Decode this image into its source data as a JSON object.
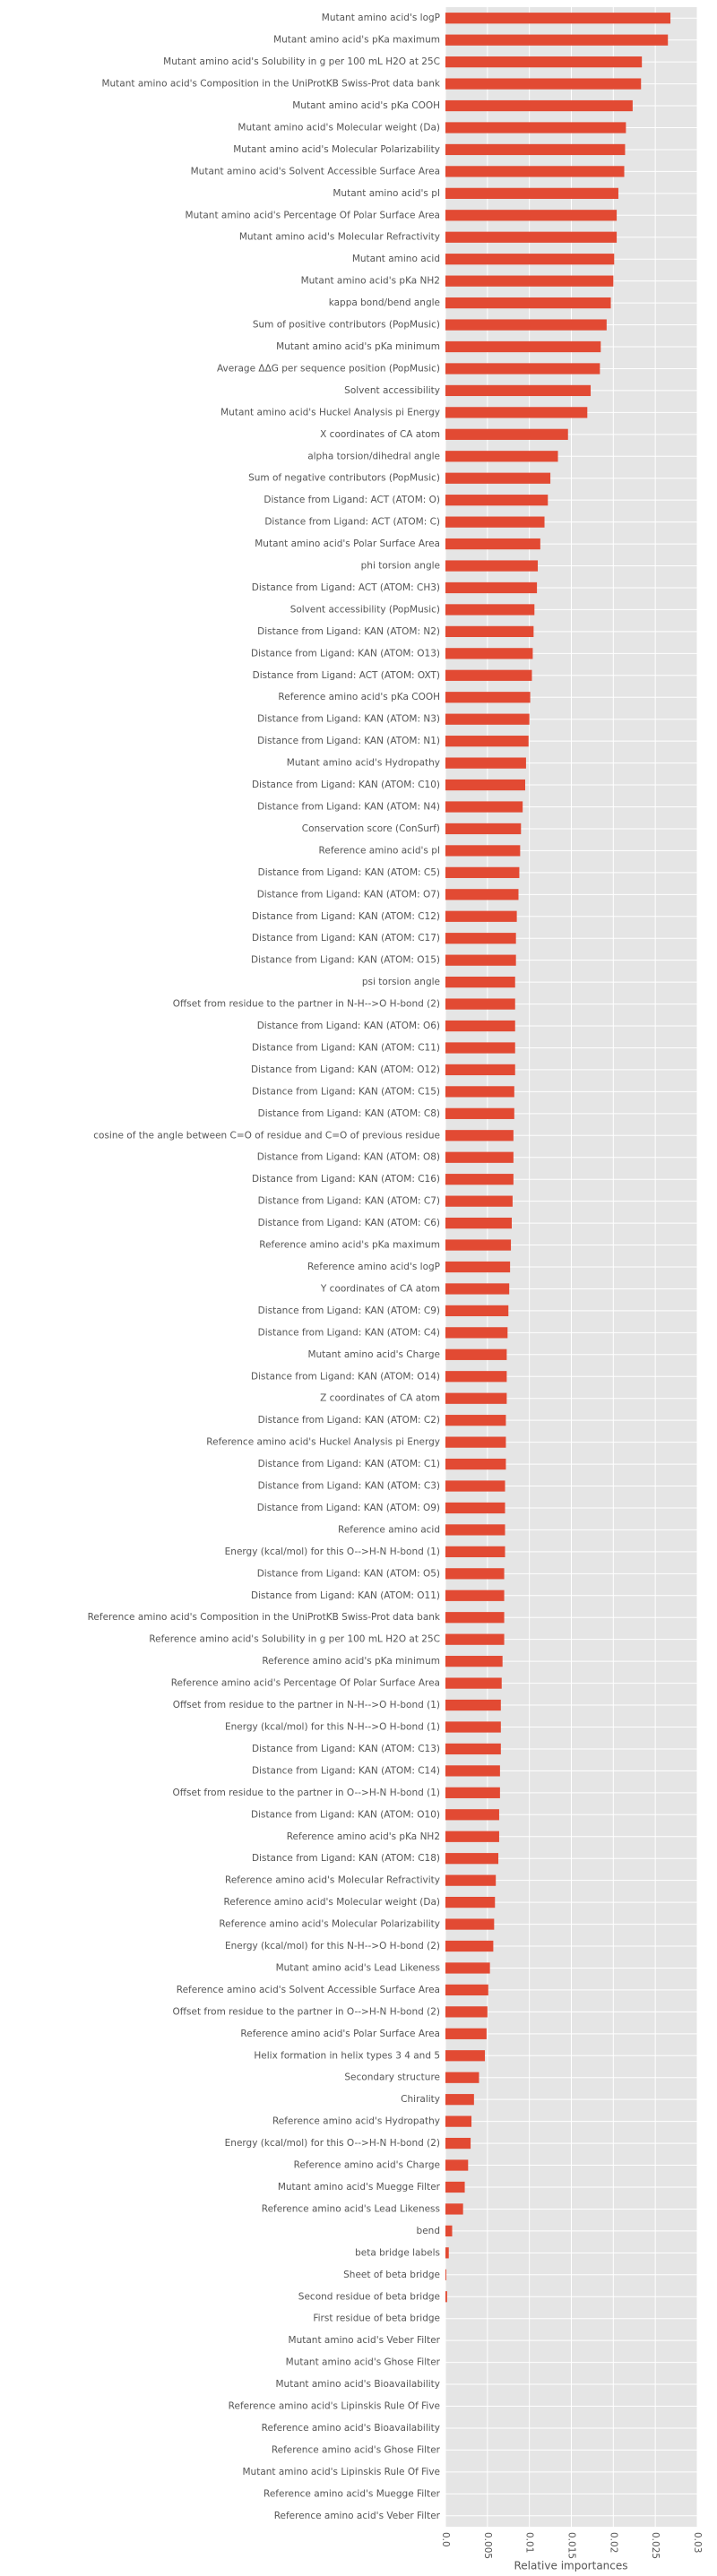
{
  "chart_data": {
    "type": "barh",
    "xlabel": "Relative importances",
    "color": "#e24a33",
    "grid": true,
    "xlim": [
      0,
      0.03
    ],
    "xticks": [
      {
        "value": 0,
        "label": "0.0"
      },
      0.005,
      0.01,
      0.015,
      0.02,
      0.025,
      0.03
    ],
    "categories": [
      "Mutant amino acid's logP",
      "Mutant amino acid's pKa maximum",
      "Mutant amino acid's Solubility in g per 100 mL H2O at 25C",
      "Mutant amino acid's Composition in the UniProtKB Swiss-Prot data bank",
      "Mutant amino acid's pKa COOH",
      "Mutant amino acid's Molecular weight (Da)",
      "Mutant amino acid's Molecular Polarizability",
      "Mutant amino acid's Solvent Accessible Surface Area",
      "Mutant amino acid's pI",
      "Mutant amino acid's Percentage Of Polar Surface Area",
      "Mutant amino acid's Molecular Refractivity",
      "Mutant amino acid",
      "Mutant amino acid's pKa NH2",
      "kappa bond/bend angle",
      "Sum of positive contributors (PopMusic)",
      "Mutant amino acid's pKa minimum",
      "Average ΔΔG per sequence position (PopMusic)",
      "Solvent accessibility",
      "Mutant amino acid's Huckel Analysis pi Energy",
      "X coordinates of CA atom",
      "alpha torsion/dihedral angle",
      "Sum of negative contributors (PopMusic)",
      "Distance from Ligand: ACT (ATOM: O)",
      "Distance from Ligand: ACT (ATOM: C)",
      "Mutant amino acid's Polar Surface Area",
      "phi torsion angle",
      "Distance from Ligand: ACT (ATOM: CH3)",
      "Solvent accessibility (PopMusic)",
      "Distance from Ligand: KAN (ATOM: N2)",
      "Distance from Ligand: KAN (ATOM: O13)",
      "Distance from Ligand: ACT (ATOM: OXT)",
      "Reference amino acid's pKa COOH",
      "Distance from Ligand: KAN (ATOM: N3)",
      "Distance from Ligand: KAN (ATOM: N1)",
      "Mutant amino acid's Hydropathy",
      "Distance from Ligand: KAN (ATOM: C10)",
      "Distance from Ligand: KAN (ATOM: N4)",
      "Conservation score (ConSurf)",
      "Reference amino acid's pI",
      "Distance from Ligand: KAN (ATOM: C5)",
      "Distance from Ligand: KAN (ATOM: O7)",
      "Distance from Ligand: KAN (ATOM: C12)",
      "Distance from Ligand: KAN (ATOM: C17)",
      "Distance from Ligand: KAN (ATOM: O15)",
      "psi torsion angle",
      "Offset from residue to the partner in N-H-->O H-bond (2)",
      "Distance from Ligand: KAN (ATOM: O6)",
      "Distance from Ligand: KAN (ATOM: C11)",
      "Distance from Ligand: KAN (ATOM: O12)",
      "Distance from Ligand: KAN (ATOM: C15)",
      "Distance from Ligand: KAN (ATOM: C8)",
      "cosine of the angle between C=O of residue and C=O of previous residue",
      "Distance from Ligand: KAN (ATOM: O8)",
      "Distance from Ligand: KAN (ATOM: C16)",
      "Distance from Ligand: KAN (ATOM: C7)",
      "Distance from Ligand: KAN (ATOM: C6)",
      "Reference amino acid's pKa maximum",
      "Reference amino acid's logP",
      "Y coordinates of CA atom",
      "Distance from Ligand: KAN (ATOM: C9)",
      "Distance from Ligand: KAN (ATOM: C4)",
      "Mutant amino acid's Charge",
      "Distance from Ligand: KAN (ATOM: O14)",
      "Z coordinates of CA atom",
      "Distance from Ligand: KAN (ATOM: C2)",
      "Reference amino acid's Huckel Analysis pi Energy",
      "Distance from Ligand: KAN (ATOM: C1)",
      "Distance from Ligand: KAN (ATOM: C3)",
      "Distance from Ligand: KAN (ATOM: O9)",
      "Reference amino acid",
      "Energy (kcal/mol) for this O-->H-N H-bond (1)",
      "Distance from Ligand: KAN (ATOM: O5)",
      "Distance from Ligand: KAN (ATOM: O11)",
      "Reference amino acid's Composition in the UniProtKB Swiss-Prot data bank",
      "Reference amino acid's Solubility in g per 100 mL H2O at 25C",
      "Reference amino acid's pKa minimum",
      "Reference amino acid's Percentage Of Polar Surface Area",
      "Offset from residue to the partner in N-H-->O H-bond (1)",
      "Energy (kcal/mol) for this N-H-->O H-bond (1)",
      "Distance from Ligand: KAN (ATOM: C13)",
      "Distance from Ligand: KAN (ATOM: C14)",
      "Offset from residue to the partner in O-->H-N H-bond (1)",
      "Distance from Ligand: KAN (ATOM: O10)",
      "Reference amino acid's pKa NH2",
      "Distance from Ligand: KAN (ATOM: C18)",
      "Reference amino acid's Molecular Refractivity",
      "Reference amino acid's Molecular weight (Da)",
      "Reference amino acid's Molecular Polarizability",
      "Energy (kcal/mol) for this N-H-->O H-bond (2)",
      "Mutant amino acid's Lead Likeness",
      "Reference amino acid's Solvent Accessible Surface Area",
      "Offset from residue to the partner in O-->H-N H-bond (2)",
      "Reference amino acid's Polar Surface Area",
      "Helix formation in helix types 3 4 and 5",
      "Secondary structure",
      "Chirality",
      "Reference amino acid's Hydropathy",
      "Energy (kcal/mol) for this O-->H-N H-bond (2)",
      "Reference amino acid's Charge",
      "Mutant amino acid's Muegge Filter",
      "Reference amino acid's Lead Likeness",
      "bend",
      "beta bridge labels",
      "Sheet of beta bridge",
      "Second residue of beta bridge",
      "First residue of beta bridge",
      "Mutant amino acid's Veber Filter",
      "Mutant amino acid's Ghose Filter",
      "Mutant amino acid's Bioavailability",
      "Reference amino acid's Lipinskis Rule Of Five",
      "Reference amino acid's Bioavailability",
      "Reference amino acid's Ghose Filter",
      "Mutant amino acid's Lipinskis Rule Of Five",
      "Reference amino acid's Muegge Filter",
      "Reference amino acid's Veber Filter"
    ],
    "values": [
      0.0268,
      0.0265,
      0.0234,
      0.0233,
      0.0223,
      0.0215,
      0.0214,
      0.0213,
      0.0206,
      0.0204,
      0.0204,
      0.0201,
      0.02,
      0.0197,
      0.0192,
      0.0185,
      0.0184,
      0.0173,
      0.0169,
      0.0146,
      0.0134,
      0.0125,
      0.0122,
      0.0118,
      0.0113,
      0.011,
      0.0109,
      0.0106,
      0.0105,
      0.0104,
      0.0103,
      0.0101,
      0.01,
      0.0099,
      0.0096,
      0.0095,
      0.0092,
      0.009,
      0.0089,
      0.0088,
      0.0087,
      0.0085,
      0.0084,
      0.0084,
      0.0083,
      0.0083,
      0.0083,
      0.0083,
      0.0083,
      0.0082,
      0.0082,
      0.0081,
      0.0081,
      0.0081,
      0.008,
      0.0079,
      0.0078,
      0.0077,
      0.0076,
      0.0075,
      0.0074,
      0.0073,
      0.0073,
      0.0073,
      0.0072,
      0.0072,
      0.0072,
      0.0071,
      0.0071,
      0.0071,
      0.0071,
      0.007,
      0.007,
      0.007,
      0.007,
      0.0068,
      0.0067,
      0.0066,
      0.0066,
      0.0066,
      0.0065,
      0.0065,
      0.0064,
      0.0064,
      0.0063,
      0.006,
      0.0059,
      0.0058,
      0.0057,
      0.0053,
      0.0051,
      0.005,
      0.0049,
      0.0047,
      0.004,
      0.0034,
      0.0031,
      0.003,
      0.0027,
      0.0023,
      0.0021,
      0.0008,
      0.0004,
      0.0001,
      0.0002,
      0,
      0,
      0,
      0,
      0,
      0,
      0,
      0,
      0,
      0
    ]
  }
}
